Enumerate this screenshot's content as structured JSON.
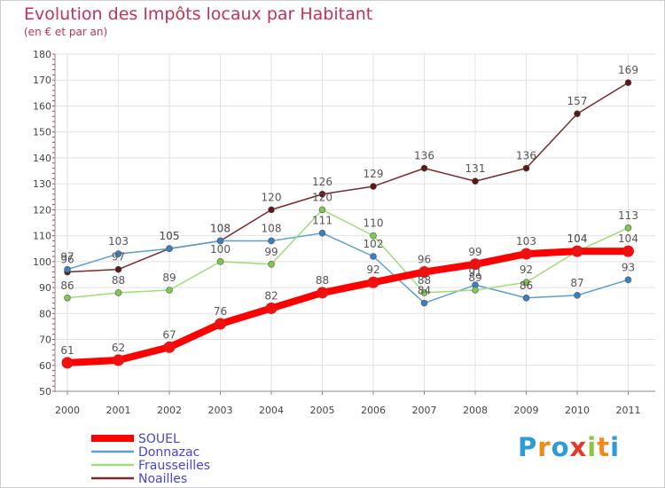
{
  "header": {
    "title": "Evolution des Impôts locaux par Habitant",
    "subtitle": "(en € et par an)"
  },
  "logo": {
    "text": "Proxiti",
    "letters": [
      "P",
      "r",
      "o",
      "x",
      "i",
      "t",
      "i"
    ],
    "colors": [
      "#2e9ad6",
      "#f08a1c",
      "#2e9ad6",
      "#e8382c",
      "#8cc63e",
      "#f08a1c",
      "#2e9ad6"
    ]
  },
  "chart_data": {
    "type": "line",
    "title": "Evolution des Impôts locaux par Habitant",
    "subtitle": "(en € et par an)",
    "xlabel": "",
    "ylabel": "",
    "ylim": [
      50,
      180
    ],
    "yticks": [
      50,
      60,
      70,
      80,
      90,
      100,
      110,
      120,
      130,
      140,
      150,
      160,
      170,
      180
    ],
    "x": [
      "2000",
      "2001",
      "2002",
      "2003",
      "2004",
      "2005",
      "2006",
      "2007",
      "2008",
      "2009",
      "2010",
      "2011"
    ],
    "grid": true,
    "legend_position": "bottom-left",
    "series": [
      {
        "name": "Noailles",
        "color": "#7a2a2a",
        "marker": "#5a1818",
        "values": [
          96,
          97,
          105,
          108,
          120,
          126,
          129,
          136,
          131,
          136,
          157,
          169
        ],
        "labels": [
          "96",
          "97",
          "105",
          "108",
          "120",
          "126",
          "129",
          "136",
          "131",
          "136",
          "157",
          "169"
        ]
      },
      {
        "name": "Donnazac",
        "color": "#5a9fd4",
        "marker": "#3a7fc0",
        "values": [
          97,
          103,
          105,
          108,
          108,
          111,
          102,
          84,
          91,
          86,
          87,
          93
        ],
        "labels": [
          "97",
          "103",
          "105",
          "108",
          "108",
          "111",
          "102",
          "84",
          "91",
          "86",
          "87",
          "93"
        ]
      },
      {
        "name": "Frausseilles",
        "color": "#9fdc7a",
        "marker": "#7cc94e",
        "values": [
          86,
          88,
          89,
          100,
          99,
          120,
          110,
          88,
          89,
          92,
          104,
          113
        ],
        "labels": [
          "86",
          "88",
          "89",
          "100",
          "99",
          "120",
          "110",
          "88",
          "89",
          "92",
          "104",
          "113"
        ]
      },
      {
        "name": "SOUEL",
        "color": "#ff0000",
        "marker": "#ee1111",
        "values": [
          61,
          62,
          67,
          76,
          82,
          88,
          92,
          96,
          99,
          103,
          104,
          104
        ],
        "labels": [
          "61",
          "62",
          "67",
          "76",
          "82",
          "88",
          "92",
          "96",
          "99",
          "103",
          "104",
          "104"
        ]
      }
    ],
    "legend": [
      "SOUEL",
      "Donnazac",
      "Frausseilles",
      "Noailles"
    ],
    "legend_text_color": "#4444dd"
  }
}
